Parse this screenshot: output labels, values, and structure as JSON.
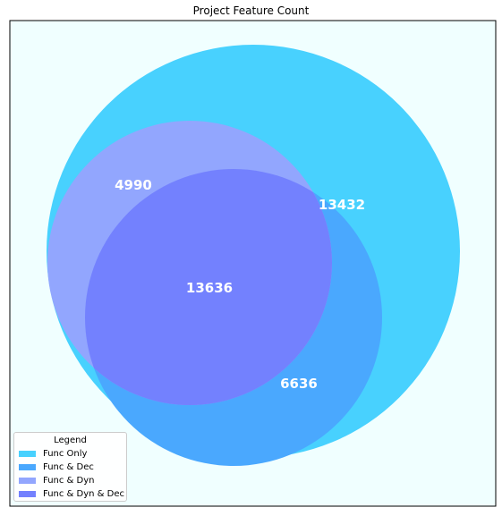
{
  "chart_data": {
    "type": "venn",
    "title": "Project Feature Count",
    "background_color": "#f0ffff",
    "legend": {
      "title": "Legend",
      "placement": "lower-left",
      "items": [
        {
          "label": "Func Only",
          "color": "#48d1fe"
        },
        {
          "label": "Func & Dec",
          "color": "#4aa8fe"
        },
        {
          "label": "Func & Dyn",
          "color": "#92a6fe"
        },
        {
          "label": "Func & Dyn & Dec",
          "color": "#7381fe"
        }
      ]
    },
    "regions": [
      {
        "name": "Func Only",
        "value": 13432
      },
      {
        "name": "Func & Dec",
        "value": 6636
      },
      {
        "name": "Func & Dyn",
        "value": 4990
      },
      {
        "name": "Func & Dyn & Dec",
        "value": 13636
      }
    ]
  }
}
